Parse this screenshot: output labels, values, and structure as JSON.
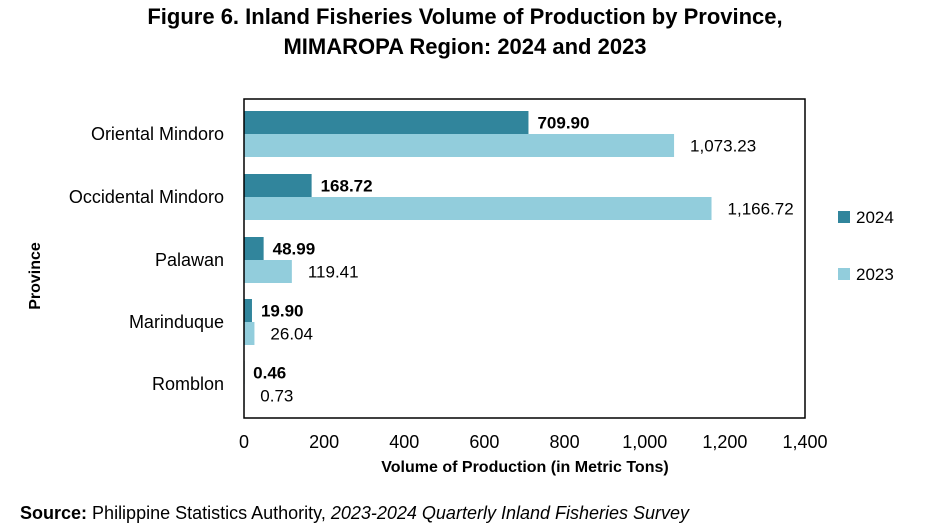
{
  "header": {
    "title_line1": "Figure 6. Inland Fisheries Volume of Production by Province,",
    "title_line2": "MIMAROPA Region: 2024 and 2023"
  },
  "source": {
    "label": "Source:",
    "text": "Philippine Statistics Authority,",
    "italic": "2023-2024 Quarterly Inland Fisheries Survey"
  },
  "chart_data": {
    "type": "bar",
    "orientation": "horizontal",
    "title": "Figure 6. Inland Fisheries Volume of Production by Province, MIMAROPA Region: 2024 and 2023",
    "xlabel": "Volume of Production (in Metric Tons)",
    "ylabel": "Province",
    "xlim": [
      0,
      1400
    ],
    "xticks": [
      0,
      200,
      400,
      600,
      800,
      1000,
      1200,
      1400
    ],
    "xtick_labels": [
      "0",
      "200",
      "400",
      "600",
      "800",
      "1,000",
      "1,200",
      "1,400"
    ],
    "grid": false,
    "legend": "right",
    "categories": [
      "Oriental Mindoro",
      "Occidental Mindoro",
      "Palawan",
      "Marinduque",
      "Romblon"
    ],
    "series": [
      {
        "name": "2024",
        "color": "#31859C",
        "values": [
          709.9,
          168.72,
          48.99,
          19.9,
          0.46
        ],
        "labels": [
          "709.90",
          "168.72",
          "48.99",
          "19.90",
          "0.46"
        ]
      },
      {
        "name": "2023",
        "color": "#92CDDC",
        "values": [
          1073.23,
          1166.72,
          119.41,
          26.04,
          0.73
        ],
        "labels": [
          "1,073.23",
          "1,166.72",
          "119.41",
          "26.04",
          "0.73"
        ]
      }
    ]
  }
}
